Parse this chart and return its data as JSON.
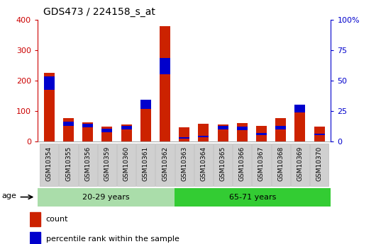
{
  "title": "GDS473 / 224158_s_at",
  "samples": [
    "GSM10354",
    "GSM10355",
    "GSM10356",
    "GSM10359",
    "GSM10360",
    "GSM10361",
    "GSM10362",
    "GSM10363",
    "GSM10364",
    "GSM10365",
    "GSM10366",
    "GSM10367",
    "GSM10368",
    "GSM10369",
    "GSM10370"
  ],
  "count_values": [
    225,
    77,
    62,
    50,
    57,
    122,
    378,
    47,
    58,
    55,
    60,
    52,
    77,
    106,
    50
  ],
  "percentile_values": [
    43,
    14,
    12,
    12,
    12,
    28,
    55,
    4,
    4,
    12,
    10,
    6,
    12,
    24,
    6
  ],
  "percentile_bottom": [
    170,
    52,
    47,
    30,
    40,
    108,
    220,
    10,
    14,
    40,
    38,
    22,
    40,
    96,
    20
  ],
  "groups": [
    {
      "label": "20-29 years",
      "start": 0,
      "end": 7
    },
    {
      "label": "65-71 years",
      "start": 7,
      "end": 15
    }
  ],
  "group_boundary": 7,
  "left_ylim": [
    0,
    400
  ],
  "right_ylim": [
    0,
    100
  ],
  "left_yticks": [
    0,
    100,
    200,
    300,
    400
  ],
  "right_yticks": [
    0,
    25,
    50,
    75,
    100
  ],
  "right_yticklabels": [
    "0",
    "25",
    "50",
    "75",
    "100%"
  ],
  "left_color": "#CC0000",
  "right_color": "#0000CC",
  "bar_color_count": "#CC2200",
  "bar_color_pct": "#0000CC",
  "group_color_light": "#aaddaa",
  "group_color_dark": "#33cc33",
  "xlabel_bg": "#d0d0d0",
  "age_label": "age",
  "legend_count": "count",
  "legend_pct": "percentile rank within the sample",
  "bar_width": 0.55
}
